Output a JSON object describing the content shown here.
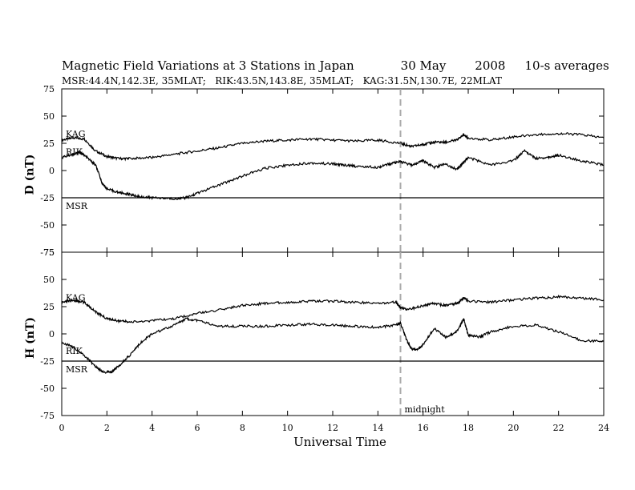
{
  "title": {
    "main": "Magnetic Field Variations at 3 Stations in Japan",
    "date": "30 May",
    "year": "2008",
    "averaging": "10-s averages"
  },
  "subtitle": "MSR:44.4N,142.3E, 35MLAT;   RIK:43.5N,143.8E, 35MLAT;   KAG:31.5N,130.7E, 22MLAT",
  "xlabel": "Universal Time",
  "annotation": "midnight",
  "chart_data": [
    {
      "type": "line",
      "ylabel": "D (nT)",
      "xlim": [
        0,
        24
      ],
      "ylim": [
        -75,
        75
      ],
      "xticks": [
        0,
        2,
        4,
        6,
        8,
        10,
        12,
        14,
        16,
        18,
        20,
        22,
        24
      ],
      "yticks": [
        75,
        50,
        25,
        0,
        -25,
        -50,
        -75
      ],
      "vertical_marker": 15,
      "series": [
        {
          "name": "KAG",
          "x": [
            0,
            0.5,
            1,
            1.5,
            2,
            2.5,
            3,
            4,
            5,
            6,
            7,
            8,
            9,
            10,
            11,
            12,
            13,
            14,
            15,
            15.5,
            16,
            16.5,
            17,
            17.5,
            17.8,
            18,
            19,
            20,
            21,
            22,
            23,
            24
          ],
          "y": [
            28,
            30,
            29,
            18,
            13,
            11,
            11,
            12,
            15,
            18,
            21,
            25,
            27,
            28,
            29,
            28,
            27,
            28,
            25,
            22,
            24,
            26,
            26,
            28,
            33,
            30,
            28,
            31,
            33,
            34,
            33,
            30
          ]
        },
        {
          "name": "RIK",
          "x": [
            0,
            0.5,
            0.8,
            1,
            1.5,
            1.8,
            2,
            2.5,
            3,
            3.5,
            4,
            5,
            5.5,
            6,
            7,
            8,
            9,
            10,
            11,
            12,
            12.5,
            13,
            14,
            14.5,
            15,
            15.5,
            16,
            16.5,
            17,
            17.5,
            17.8,
            18,
            19,
            20,
            20.5,
            21,
            21.5,
            22,
            23,
            24
          ],
          "y": [
            12,
            15,
            17,
            14,
            5,
            -12,
            -17,
            -20,
            -22,
            -24,
            -25,
            -26,
            -25,
            -21,
            -13,
            -5,
            2,
            5,
            7,
            6,
            5,
            4,
            3,
            6,
            8,
            5,
            9,
            3,
            6,
            1,
            8,
            12,
            5,
            9,
            18,
            11,
            12,
            14,
            9,
            5
          ]
        },
        {
          "name": "MSR",
          "x": [
            0,
            24
          ],
          "y": [
            -25,
            -25
          ]
        }
      ]
    },
    {
      "type": "line",
      "ylabel": "H (nT)",
      "xlim": [
        0,
        24
      ],
      "ylim": [
        -75,
        75
      ],
      "xticks": [
        0,
        2,
        4,
        6,
        8,
        10,
        12,
        14,
        16,
        18,
        20,
        22,
        24
      ],
      "yticks": [
        75,
        50,
        25,
        0,
        -25,
        -50,
        -75
      ],
      "vertical_marker": 15,
      "series": [
        {
          "name": "KAG",
          "x": [
            0,
            0.5,
            1,
            1.5,
            2,
            2.5,
            3,
            4,
            5,
            6,
            7,
            8,
            9,
            10,
            11,
            12,
            13,
            14,
            14.8,
            15,
            15.3,
            16,
            16.5,
            17,
            17.5,
            17.8,
            18,
            19,
            20,
            21,
            22,
            23,
            24
          ],
          "y": [
            29,
            31,
            29,
            20,
            14,
            12,
            11,
            12,
            14,
            19,
            22,
            26,
            28,
            29,
            30,
            30,
            29,
            28,
            29,
            24,
            22,
            26,
            28,
            26,
            28,
            33,
            30,
            29,
            31,
            33,
            34,
            33,
            31
          ]
        },
        {
          "name": "RIK",
          "x": [
            0,
            0.5,
            1,
            1.5,
            1.8,
            2.2,
            2.5,
            3,
            3.5,
            4,
            5,
            5.5,
            6,
            7,
            8,
            9,
            10,
            11,
            12,
            13,
            14,
            14.8,
            15,
            15.3,
            15.5,
            15.8,
            16,
            16.5,
            17,
            17.5,
            17.8,
            18,
            18.5,
            19,
            20,
            21,
            22,
            23,
            24
          ],
          "y": [
            -8,
            -12,
            -20,
            -30,
            -35,
            -35,
            -30,
            -20,
            -8,
            0,
            8,
            14,
            12,
            7,
            7,
            7,
            8,
            9,
            8,
            7,
            6,
            8,
            10,
            -7,
            -14,
            -14,
            -10,
            5,
            -3,
            2,
            14,
            -1,
            -3,
            2,
            7,
            8,
            2,
            -6,
            -7
          ]
        },
        {
          "name": "MSR",
          "x": [
            0,
            24
          ],
          "y": [
            -25,
            -25
          ]
        }
      ]
    }
  ]
}
